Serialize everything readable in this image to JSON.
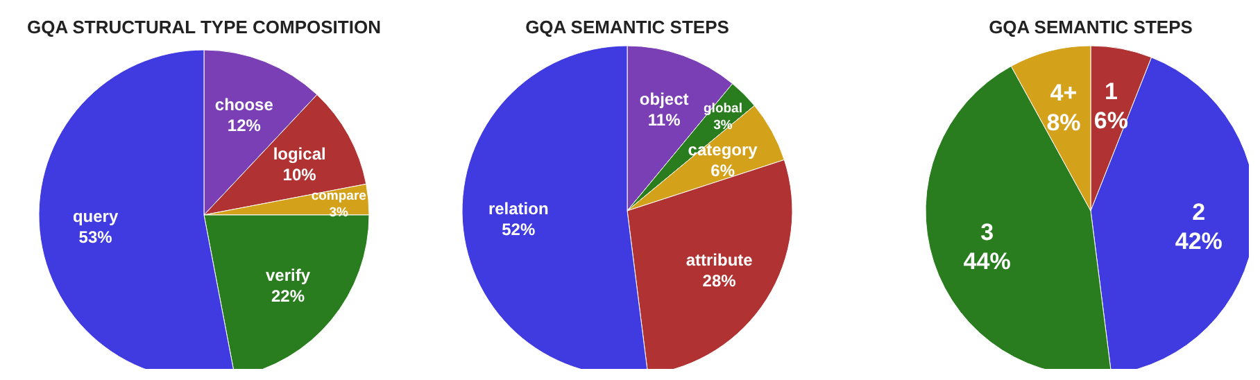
{
  "chart_data": [
    {
      "type": "pie",
      "title": "GQA STRUCTURAL TYPE COMPOSITION",
      "categories": [
        "choose",
        "logical",
        "compare",
        "verify",
        "query"
      ],
      "values": [
        12,
        10,
        3,
        22,
        53
      ],
      "value_labels": [
        "12%",
        "10%",
        "3%",
        "22%",
        "53%"
      ],
      "colors": [
        "#7b3fb5",
        "#b03232",
        "#d4a21a",
        "#2a7d1f",
        "#3f3be0"
      ]
    },
    {
      "type": "pie",
      "title": "GQA SEMANTIC STEPS",
      "categories": [
        "object",
        "global",
        "category",
        "attribute",
        "relation"
      ],
      "values": [
        11,
        3,
        6,
        28,
        52
      ],
      "value_labels": [
        "11%",
        "3%",
        "6%",
        "28%",
        "52%"
      ],
      "colors": [
        "#7b3fb5",
        "#2a7d1f",
        "#d4a21a",
        "#b03232",
        "#3f3be0"
      ]
    },
    {
      "type": "pie",
      "title": "GQA SEMANTIC STEPS",
      "categories": [
        "1",
        "2",
        "3",
        "4+"
      ],
      "values": [
        6,
        42,
        44,
        8
      ],
      "value_labels": [
        "6%",
        "42%",
        "44%",
        "8%"
      ],
      "colors": [
        "#b03232",
        "#3f3be0",
        "#2a7d1f",
        "#d4a21a"
      ]
    }
  ]
}
